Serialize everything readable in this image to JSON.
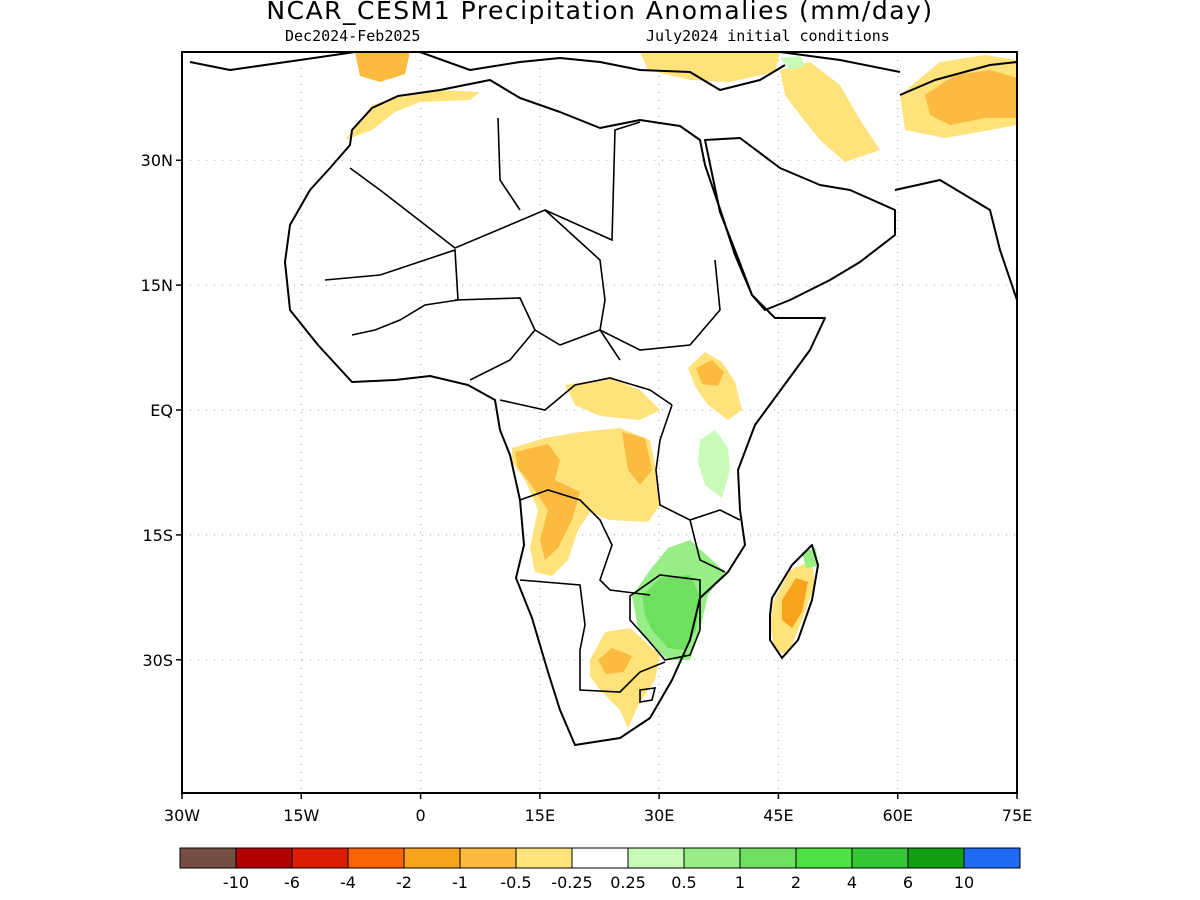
{
  "title": "NCAR_CESM1 Precipitation Anomalies (mm/day)",
  "subtitle_left": "Dec2024-Feb2025",
  "subtitle_right": "July2024 initial conditions",
  "map": {
    "lon_range": [
      -30,
      75
    ],
    "lat_range": [
      -46,
      43
    ],
    "lat_ticks": [
      {
        "value": 30,
        "label": "30N"
      },
      {
        "value": 15,
        "label": "15N"
      },
      {
        "value": 0,
        "label": "EQ"
      },
      {
        "value": -15,
        "label": "15S"
      },
      {
        "value": -30,
        "label": "30S"
      }
    ],
    "lon_ticks": [
      {
        "value": -30,
        "label": "30W"
      },
      {
        "value": -15,
        "label": "15W"
      },
      {
        "value": 0,
        "label": "0"
      },
      {
        "value": 15,
        "label": "15E"
      },
      {
        "value": 30,
        "label": "30E"
      },
      {
        "value": 45,
        "label": "45E"
      },
      {
        "value": 60,
        "label": "60E"
      },
      {
        "value": 75,
        "label": "75E"
      }
    ],
    "grid": "dotted",
    "anomaly_regions": [
      {
        "region": "Angola / Congo / Zambia",
        "class": "-0.5 to -0.25",
        "color": "#ffe27a"
      },
      {
        "region": "Angola coast",
        "class": "-1 to -0.5",
        "color": "#fbbb40"
      },
      {
        "region": "Zambia / Mozambique / Zimbabwe",
        "class": "0.5 to 1",
        "color": "#97ed86"
      },
      {
        "region": "Zimbabwe core",
        "class": "1 to 2",
        "color": "#6fdf5f"
      },
      {
        "region": "Madagascar",
        "class": "-2 to -1",
        "color": "#f9a21c"
      },
      {
        "region": "Southern Africa interior",
        "class": "-0.5 to -0.25",
        "color": "#ffe27a"
      },
      {
        "region": "Iran / Afghanistan",
        "class": "-1 to -0.5",
        "color": "#fbbb40"
      },
      {
        "region": "Mediterranean / Middle East",
        "class": "-0.5 to -0.25",
        "color": "#ffe27a"
      }
    ]
  },
  "colorbar": {
    "colors": [
      "#754f43",
      "#b30000",
      "#dd1d00",
      "#f86400",
      "#f9a21c",
      "#fbbb40",
      "#ffe27a",
      "#ffffff",
      "#c8fbb8",
      "#97ed86",
      "#6fdf5f",
      "#4ce241",
      "#34c634",
      "#11a011",
      "#1f6af2"
    ],
    "labels": [
      "-10",
      "-6",
      "-4",
      "-2",
      "-1",
      "-0.5",
      "-0.25",
      "0.25",
      "0.5",
      "1",
      "2",
      "4",
      "6",
      "10"
    ]
  }
}
